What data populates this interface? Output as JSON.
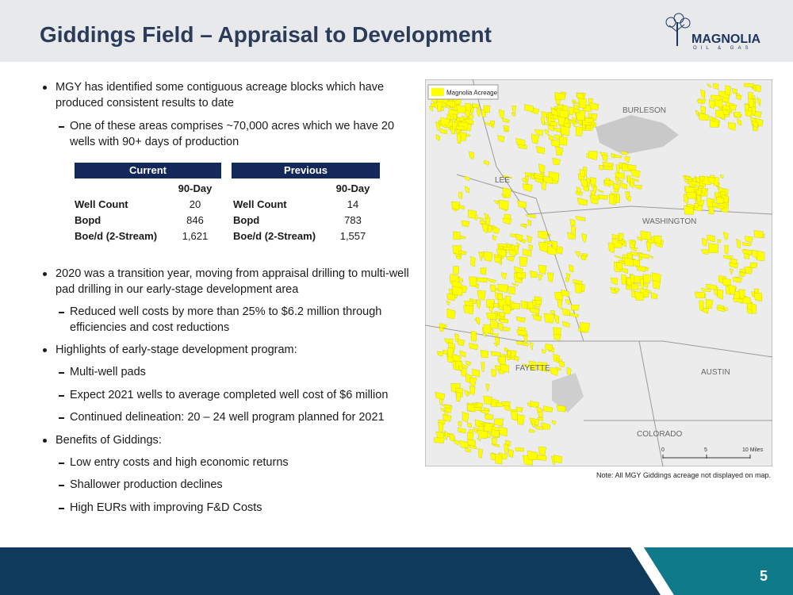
{
  "header": {
    "title": "Giddings Field – Appraisal to Development",
    "logo": {
      "name": "MAGNOLIA",
      "subtitle": "OIL & GAS"
    }
  },
  "bullets_top": [
    {
      "level": 1,
      "text": "MGY has identified some contiguous acreage blocks which have produced consistent results to date"
    },
    {
      "level": 2,
      "text": "One of these areas comprises ~70,000 acres which we have 20 wells with 90+ days of production"
    }
  ],
  "tables": {
    "current": {
      "title": "Current",
      "column": "90-Day",
      "rows": [
        [
          "Well Count",
          "20"
        ],
        [
          "Bopd",
          "846"
        ],
        [
          "Boe/d (2-Stream)",
          "1,621"
        ]
      ]
    },
    "previous": {
      "title": "Previous",
      "column": "90-Day",
      "rows": [
        [
          "Well Count",
          "14"
        ],
        [
          "Bopd",
          "783"
        ],
        [
          "Boe/d (2-Stream)",
          "1,557"
        ]
      ]
    }
  },
  "bullets_bottom": [
    {
      "level": 1,
      "text": "2020 was a transition year, moving from appraisal drilling to multi-well pad drilling in our early-stage development area"
    },
    {
      "level": 2,
      "text": "Reduced well costs by more than 25% to $6.2 million through efficiencies and cost reductions"
    },
    {
      "level": 1,
      "text": "Highlights of early-stage development program:"
    },
    {
      "level": 2,
      "text": "Multi-well pads"
    },
    {
      "level": 2,
      "text": "Expect 2021 wells to average completed well cost of $6 million"
    },
    {
      "level": 2,
      "text": "Continued delineation: 20 – 24 well program planned for 2021"
    },
    {
      "level": 1,
      "text": "Benefits of Giddings:"
    },
    {
      "level": 2,
      "text": "Low entry costs and high economic returns"
    },
    {
      "level": 2,
      "text": "Shallower production declines"
    },
    {
      "level": 2,
      "text": "High EURs with improving F&D Costs"
    }
  ],
  "map": {
    "legend": "Magnolia Acreage",
    "labels": [
      "BURLESON",
      "LEE",
      "WASHINGTON",
      "FAYETTE",
      "AUSTIN",
      "COLORADO"
    ],
    "scale": [
      "0",
      "5",
      "10 Miles"
    ]
  },
  "note": "Note: All MGY Giddings acreage not displayed on map.",
  "footer": {
    "page": "5"
  }
}
